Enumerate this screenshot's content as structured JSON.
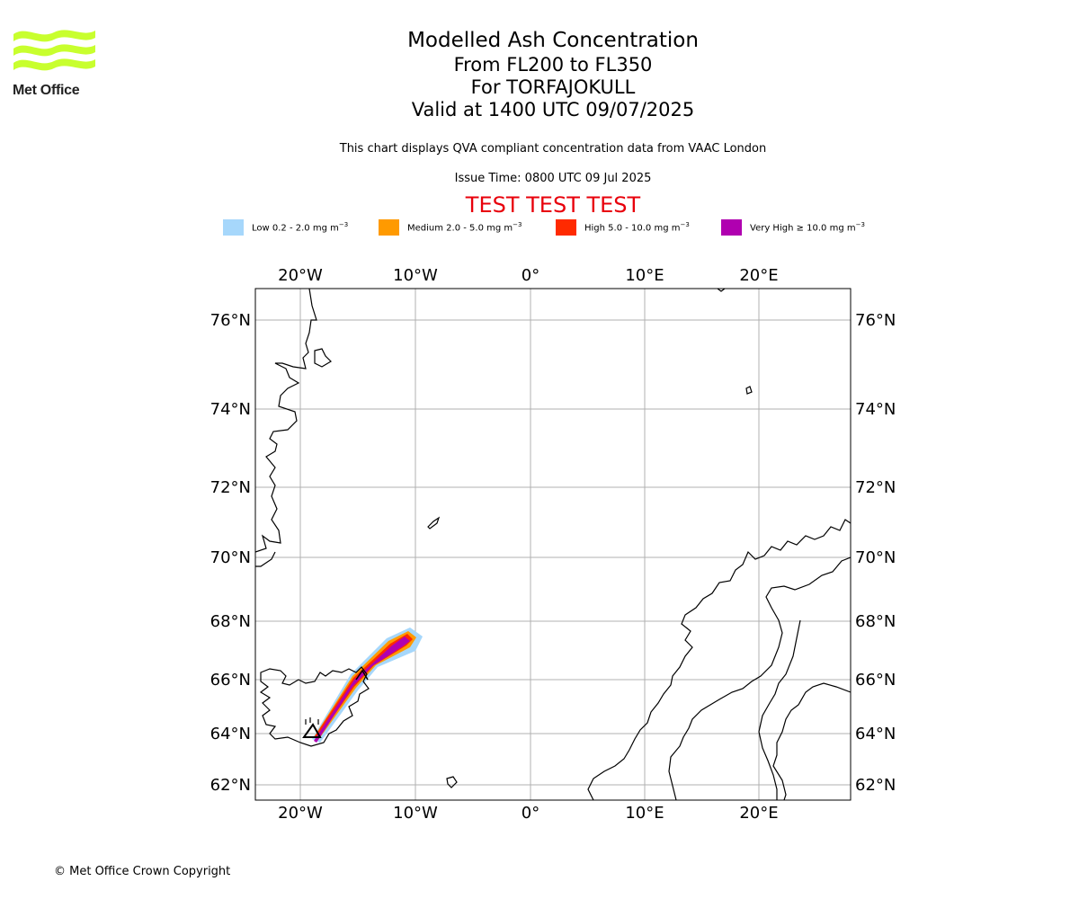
{
  "logo": {
    "text": "Met Office"
  },
  "title": {
    "line1": "Modelled Ash Concentration",
    "line2": "From FL200 to FL350",
    "line3": "For TORFAJOKULL",
    "line4": "Valid at 1400 UTC 09/07/2025"
  },
  "subtitle": "This chart displays QVA compliant concentration data from VAAC London",
  "issue_time": "Issue Time: 0800 UTC 09 Jul 2025",
  "test_banner": "TEST TEST TEST",
  "legend": [
    {
      "label": "Low 0.2 - 2.0 mg m",
      "color": "#a6d7fb"
    },
    {
      "label": "Medium 2.0 - 5.0 mg m",
      "color": "#ff9a00"
    },
    {
      "label": "High 5.0 - 10.0 mg m",
      "color": "#ff2a00"
    },
    {
      "label": "Very High ≥ 10.0 mg m",
      "color": "#b000b0"
    }
  ],
  "legend_unit_exponent": "−3",
  "map": {
    "longitude_labels": [
      "20°W",
      "10°W",
      "0°",
      "10°E",
      "20°E"
    ],
    "latitude_labels": [
      "76°N",
      "74°N",
      "72°N",
      "70°N",
      "68°N",
      "66°N",
      "64°N",
      "62°N"
    ],
    "grid": true,
    "volcano_marker": "triangle"
  },
  "copyright": "© Met Office Crown Copyright"
}
